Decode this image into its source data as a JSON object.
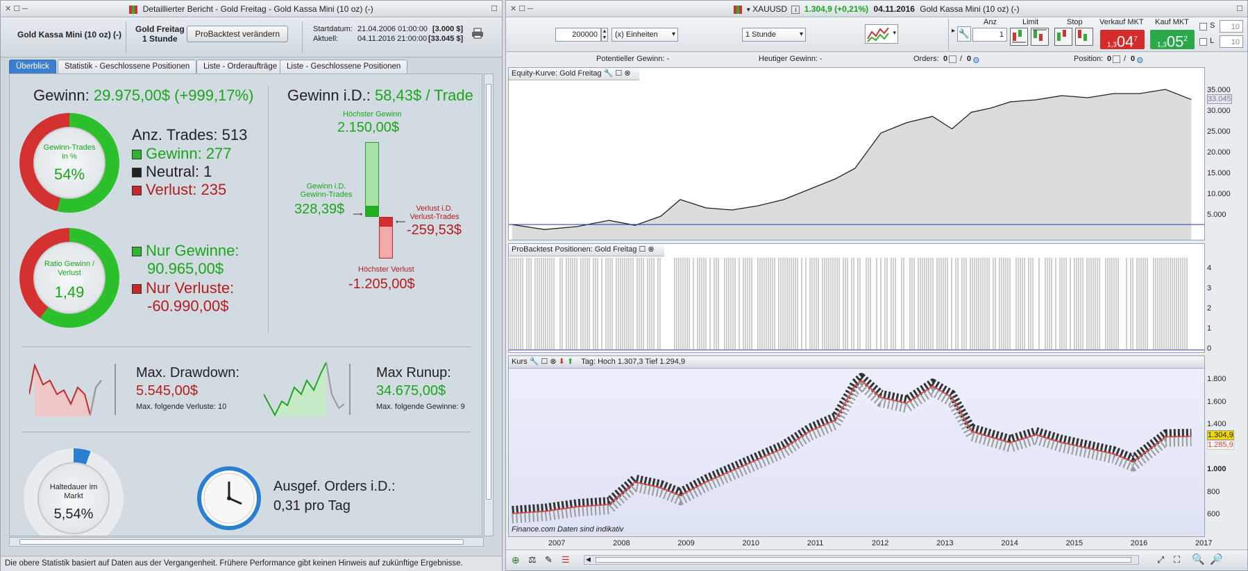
{
  "left_window": {
    "title": "Detaillierter Bericht - Gold Freitag - Gold Kassa Mini (10 oz) (-)",
    "instrument": "Gold Kassa Mini (10 oz) (-)",
    "strategy": "Gold Freitag",
    "timeframe": "1 Stunde",
    "button_label": "ProBacktest verändern",
    "start_label": "Startdatum:",
    "start_value": "21.04.2006 01:00:00",
    "start_amount": "[3.000 $]",
    "current_label": "Aktuell:",
    "current_value": "04.11.2016 21:00:00",
    "current_amount": "[33.045 $]",
    "tabs": [
      "Überblick",
      "Statistik - Geschlossene Positionen",
      "Liste - Orderaufträge",
      "Liste - Geschlossene Positionen"
    ],
    "gain_label": "Gewinn:",
    "gain_value": "29.975,00$ (+999,17%)",
    "ring1_label": "Gewinn-Trades in %",
    "ring1_value": "54%",
    "ring1_fraction": 0.54,
    "trades_label": "Anz. Trades: 513",
    "win_label": "Gewinn: 277",
    "neutral_label": "Neutral: 1",
    "loss_label": "Verlust: 235",
    "ring2_label": "Ratio Gewinn / Verlust",
    "ring2_value": "1,49",
    "ring2_fraction": 0.6,
    "only_gains_label": "Nur Gewinne:",
    "only_gains_value": "90.965,00$",
    "only_losses_label": "Nur Verluste:",
    "only_losses_value": "-60.990,00$",
    "avg_gain_label": "Gewinn i.D.:",
    "avg_gain_value": "58,43$ / Trade",
    "highest_gain_label": "Höchster Gewinn",
    "highest_gain_value": "2.150,00$",
    "avg_win_label": "Gewinn i.D. Gewinn-Trades",
    "avg_win_value": "328,39$",
    "avg_loss_label": "Verlust i.D. Verlust-Trades",
    "avg_loss_value": "-259,53$",
    "highest_loss_label": "Höchster Verlust",
    "highest_loss_value": "-1.205,00$",
    "drawdown_label": "Max. Drawdown:",
    "drawdown_value": "5.545,00$",
    "drawdown_sub": "Max. folgende Verluste: 10",
    "runup_label": "Max Runup:",
    "runup_value": "34.675,00$",
    "runup_sub": "Max. folgende Gewinne: 9",
    "hold_label": "Haltedauer im Markt",
    "hold_value": "5,54%",
    "hold_fraction": 0.0554,
    "orders_label": "Ausgef. Orders i.D.:",
    "orders_value": "0,31 pro Tag",
    "status": "Die obere Statistik basiert auf Daten aus der Vergangenheit. Frühere Performance gibt keinen Hinweis auf zukünftige Ergebnisse."
  },
  "right_window": {
    "symbol": "XAUUSD",
    "quote": "1.304,9 (+0,21%)",
    "date": "04.11.2016",
    "instrument": "Gold Kassa Mini (10 oz) (-)",
    "quantity": "200000",
    "unit": "(x) Einheiten",
    "timeframe": "1 Stunde",
    "anz_label": "Anz",
    "anz_value": "1",
    "limit_label": "Limit",
    "stop_label": "Stop",
    "sell_label": "Verkauf MKT",
    "sell_price_small": "1,3",
    "sell_price_big": "04",
    "sell_price_sup": "7",
    "buy_label": "Kauf MKT",
    "buy_price_small": "1,3",
    "buy_price_big": "05",
    "buy_price_sup": "2",
    "s_label": "S",
    "s_value": "10",
    "l_label": "L",
    "l_value": "10",
    "pot_gain": "Potentieller Gewinn: -",
    "today_gain": "Heutiger Gewinn: -",
    "orders_label": "Orders:",
    "orders_a": "0",
    "orders_b": "0",
    "position_label": "Position:",
    "position_a": "0",
    "position_b": "0",
    "equity_panel": "Equity-Kurve: Gold Freitag",
    "equity_last": "33.045",
    "positions_panel": "ProBacktest Positionen: Gold Freitag",
    "price_panel": "Kurs",
    "price_info": "Tag: Hoch 1.307,3 Tief 1.294,9",
    "price_last": "1.304,9",
    "price_second": "1.285,9",
    "source": "Finance.com  Daten sind indikativ"
  },
  "chart_data": [
    {
      "type": "area",
      "title": "Equity-Kurve: Gold Freitag",
      "x": [
        2006.3,
        2006.8,
        2007.3,
        2007.8,
        2008.2,
        2008.6,
        2008.9,
        2009.3,
        2009.7,
        2010.1,
        2010.5,
        2010.9,
        2011.3,
        2011.6,
        2012.0,
        2012.4,
        2012.8,
        2013.1,
        2013.4,
        2013.7,
        2014.0,
        2014.4,
        2014.8,
        2015.2,
        2015.6,
        2016.0,
        2016.4,
        2016.8
      ],
      "y": [
        3000,
        1800,
        2500,
        4000,
        2800,
        5000,
        9000,
        7000,
        6500,
        7500,
        9000,
        11500,
        14000,
        16500,
        25000,
        27500,
        29000,
        26000,
        30000,
        31000,
        32500,
        33000,
        34000,
        33500,
        34500,
        34500,
        35500,
        33045
      ],
      "ylim": [
        0,
        37000
      ],
      "yticks": [
        "5.000",
        "10.000",
        "15.000",
        "20.000",
        "25.000",
        "30.000",
        "35.000"
      ]
    },
    {
      "type": "bar",
      "title": "ProBacktest Positionen: Gold Freitag",
      "yticks": [
        "0",
        "1",
        "2",
        "3",
        "4"
      ]
    },
    {
      "type": "line",
      "title": "Kurs",
      "x": [
        2006.3,
        2006.8,
        2007.3,
        2007.8,
        2008.2,
        2008.6,
        2008.9,
        2009.3,
        2009.7,
        2010.1,
        2010.5,
        2010.9,
        2011.3,
        2011.6,
        2011.7,
        2012.0,
        2012.4,
        2012.8,
        2013.1,
        2013.4,
        2013.7,
        2014.0,
        2014.4,
        2014.8,
        2015.2,
        2015.6,
        2015.9,
        2016.4,
        2016.8
      ],
      "y": [
        620,
        640,
        680,
        700,
        900,
        850,
        780,
        900,
        1000,
        1100,
        1200,
        1350,
        1450,
        1750,
        1800,
        1650,
        1600,
        1750,
        1650,
        1350,
        1300,
        1250,
        1320,
        1250,
        1200,
        1150,
        1080,
        1300,
        1304.9
      ],
      "ylim": [
        540,
        1880
      ],
      "yticks": [
        "600",
        "800",
        "1.000",
        "1.200",
        "1.400",
        "1.600",
        "1.800"
      ],
      "xticks": [
        "2007",
        "2008",
        "2009",
        "2010",
        "2011",
        "2012",
        "2013",
        "2014",
        "2015",
        "2016",
        "2017"
      ]
    }
  ]
}
